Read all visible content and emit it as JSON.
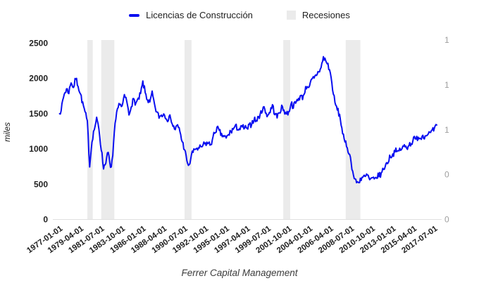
{
  "page": {
    "background": "#ffffff"
  },
  "legend": {
    "items": [
      {
        "label": "Licencias de Construcción",
        "swatch": "line",
        "color": "#0a0ff0"
      },
      {
        "label": "Recesiones",
        "swatch": "box",
        "color": "#ebebeb"
      }
    ]
  },
  "footer": {
    "text": "Ferrer Capital Management"
  },
  "colors": {
    "series_line": "#0a0ff0",
    "recession_band": "#ebebeb",
    "axis_baseline": "#e0e0e0",
    "tick_text_dark": "#212121",
    "tick_text_gray": "#9e9e9e"
  },
  "chart_data": {
    "type": "line",
    "title": "",
    "legend_position": "top-center",
    "grid": false,
    "y_left": {
      "title": "miles",
      "min": 0,
      "max": 2500,
      "ticks_top_to_bottom": [
        2500,
        2000,
        1500,
        1000,
        500,
        0
      ]
    },
    "y_right": {
      "min": 0,
      "max": 1,
      "ticks": [
        {
          "label": "1",
          "value": 1
        },
        {
          "label": "1",
          "value": 0.75
        },
        {
          "label": "1",
          "value": 0.5
        },
        {
          "label": "0",
          "value": 0.25
        },
        {
          "label": "0",
          "value": 0
        }
      ]
    },
    "x_tick_labels": [
      "1977-01-01",
      "1979-04-01",
      "1981-07-01",
      "1983-10-01",
      "1986-01-01",
      "1988-04-01",
      "1990-07-01",
      "1992-10-01",
      "1995-01-01",
      "1997-04-01",
      "1999-07-01",
      "2001-10-01",
      "2004-01-01",
      "2006-04-01",
      "2008-07-01",
      "2010-10-01",
      "2013-01-01",
      "2015-04-01",
      "2017-07-01"
    ],
    "x_range": {
      "min_year": 1976.27,
      "max_year": 2017.9
    },
    "noise_amplitude": 45,
    "recessions": {
      "name": "Recesiones",
      "color": "#ebebeb",
      "ranges": [
        [
          "1980-01",
          "1980-08"
        ],
        [
          "1981-07",
          "1982-12"
        ],
        [
          "1990-07",
          "1991-04"
        ],
        [
          "2001-03",
          "2001-12"
        ],
        [
          "2007-12",
          "2009-07"
        ]
      ]
    },
    "series": [
      {
        "name": "Licencias de Construcción",
        "color": "#0a0ff0",
        "unit": "miles",
        "points": [
          [
            "1977-01",
            1500
          ],
          [
            "1977-04",
            1620
          ],
          [
            "1977-07",
            1780
          ],
          [
            "1977-10",
            1850
          ],
          [
            "1978-01",
            1800
          ],
          [
            "1978-04",
            1950
          ],
          [
            "1978-07",
            1870
          ],
          [
            "1978-10",
            2000
          ],
          [
            "1979-01",
            1900
          ],
          [
            "1979-04",
            1780
          ],
          [
            "1979-07",
            1650
          ],
          [
            "1979-10",
            1520
          ],
          [
            "1980-01",
            1380
          ],
          [
            "1980-04",
            760
          ],
          [
            "1980-07",
            1120
          ],
          [
            "1980-10",
            1280
          ],
          [
            "1981-01",
            1430
          ],
          [
            "1981-04",
            1290
          ],
          [
            "1981-07",
            1000
          ],
          [
            "1981-10",
            730
          ],
          [
            "1982-01",
            820
          ],
          [
            "1982-04",
            950
          ],
          [
            "1982-07",
            720
          ],
          [
            "1982-10",
            900
          ],
          [
            "1983-01",
            1350
          ],
          [
            "1983-04",
            1550
          ],
          [
            "1983-07",
            1650
          ],
          [
            "1983-10",
            1600
          ],
          [
            "1984-01",
            1750
          ],
          [
            "1984-04",
            1680
          ],
          [
            "1984-07",
            1480
          ],
          [
            "1984-10",
            1620
          ],
          [
            "1985-01",
            1700
          ],
          [
            "1985-04",
            1650
          ],
          [
            "1985-07",
            1700
          ],
          [
            "1985-10",
            1780
          ],
          [
            "1986-01",
            1950
          ],
          [
            "1986-04",
            1800
          ],
          [
            "1986-07",
            1700
          ],
          [
            "1986-10",
            1650
          ],
          [
            "1987-01",
            1800
          ],
          [
            "1987-04",
            1620
          ],
          [
            "1987-07",
            1520
          ],
          [
            "1987-10",
            1450
          ],
          [
            "1988-01",
            1480
          ],
          [
            "1988-04",
            1500
          ],
          [
            "1988-07",
            1450
          ],
          [
            "1988-10",
            1420
          ],
          [
            "1989-01",
            1450
          ],
          [
            "1989-04",
            1320
          ],
          [
            "1989-07",
            1280
          ],
          [
            "1989-10",
            1330
          ],
          [
            "1990-01",
            1250
          ],
          [
            "1990-04",
            1100
          ],
          [
            "1990-07",
            1000
          ],
          [
            "1990-10",
            820
          ],
          [
            "1991-01",
            760
          ],
          [
            "1991-04",
            920
          ],
          [
            "1991-07",
            980
          ],
          [
            "1991-10",
            1010
          ],
          [
            "1992-01",
            1000
          ],
          [
            "1992-04",
            1020
          ],
          [
            "1992-07",
            1050
          ],
          [
            "1992-10",
            1080
          ],
          [
            "1993-01",
            1080
          ],
          [
            "1993-04",
            1060
          ],
          [
            "1993-07",
            1120
          ],
          [
            "1993-10",
            1230
          ],
          [
            "1994-01",
            1300
          ],
          [
            "1994-04",
            1250
          ],
          [
            "1994-07",
            1200
          ],
          [
            "1994-10",
            1180
          ],
          [
            "1995-01",
            1150
          ],
          [
            "1995-04",
            1200
          ],
          [
            "1995-07",
            1250
          ],
          [
            "1995-10",
            1280
          ],
          [
            "1996-01",
            1320
          ],
          [
            "1996-04",
            1290
          ],
          [
            "1996-07",
            1280
          ],
          [
            "1996-10",
            1310
          ],
          [
            "1997-01",
            1300
          ],
          [
            "1997-04",
            1280
          ],
          [
            "1997-07",
            1330
          ],
          [
            "1997-10",
            1360
          ],
          [
            "1998-01",
            1420
          ],
          [
            "1998-04",
            1400
          ],
          [
            "1998-07",
            1450
          ],
          [
            "1998-10",
            1520
          ],
          [
            "1999-01",
            1600
          ],
          [
            "1999-04",
            1520
          ],
          [
            "1999-07",
            1480
          ],
          [
            "1999-10",
            1530
          ],
          [
            "2000-01",
            1620
          ],
          [
            "2000-04",
            1500
          ],
          [
            "2000-07",
            1450
          ],
          [
            "2000-10",
            1520
          ],
          [
            "2001-01",
            1600
          ],
          [
            "2001-04",
            1550
          ],
          [
            "2001-07",
            1500
          ],
          [
            "2001-10",
            1520
          ],
          [
            "2002-01",
            1650
          ],
          [
            "2002-04",
            1600
          ],
          [
            "2002-07",
            1650
          ],
          [
            "2002-10",
            1700
          ],
          [
            "2003-01",
            1750
          ],
          [
            "2003-04",
            1720
          ],
          [
            "2003-07",
            1820
          ],
          [
            "2003-10",
            1900
          ],
          [
            "2004-01",
            1880
          ],
          [
            "2004-04",
            1980
          ],
          [
            "2004-07",
            2000
          ],
          [
            "2004-10",
            2050
          ],
          [
            "2005-01",
            2100
          ],
          [
            "2005-04",
            2150
          ],
          [
            "2005-07",
            2300
          ],
          [
            "2005-10",
            2250
          ],
          [
            "2006-01",
            2200
          ],
          [
            "2006-04",
            2080
          ],
          [
            "2006-07",
            1850
          ],
          [
            "2006-10",
            1650
          ],
          [
            "2007-01",
            1560
          ],
          [
            "2007-04",
            1480
          ],
          [
            "2007-07",
            1300
          ],
          [
            "2007-10",
            1120
          ],
          [
            "2008-01",
            1050
          ],
          [
            "2008-04",
            950
          ],
          [
            "2008-07",
            820
          ],
          [
            "2008-10",
            620
          ],
          [
            "2009-01",
            550
          ],
          [
            "2009-04",
            520
          ],
          [
            "2009-07",
            580
          ],
          [
            "2009-10",
            600
          ],
          [
            "2010-01",
            600
          ],
          [
            "2010-04",
            630
          ],
          [
            "2010-07",
            560
          ],
          [
            "2010-10",
            580
          ],
          [
            "2011-01",
            560
          ],
          [
            "2011-04",
            600
          ],
          [
            "2011-07",
            620
          ],
          [
            "2011-10",
            650
          ],
          [
            "2012-01",
            720
          ],
          [
            "2012-04",
            780
          ],
          [
            "2012-07",
            820
          ],
          [
            "2012-10",
            900
          ],
          [
            "2013-01",
            920
          ],
          [
            "2013-04",
            980
          ],
          [
            "2013-07",
            950
          ],
          [
            "2013-10",
            1000
          ],
          [
            "2014-01",
            1000
          ],
          [
            "2014-04",
            1050
          ],
          [
            "2014-07",
            1020
          ],
          [
            "2014-10",
            1060
          ],
          [
            "2015-01",
            1080
          ],
          [
            "2015-04",
            1150
          ],
          [
            "2015-07",
            1130
          ],
          [
            "2015-10",
            1180
          ],
          [
            "2016-01",
            1150
          ],
          [
            "2016-04",
            1200
          ],
          [
            "2016-07",
            1180
          ],
          [
            "2016-10",
            1220
          ],
          [
            "2017-01",
            1220
          ],
          [
            "2017-04",
            1250
          ],
          [
            "2017-07",
            1280
          ],
          [
            "2017-10",
            1340
          ]
        ]
      }
    ]
  }
}
